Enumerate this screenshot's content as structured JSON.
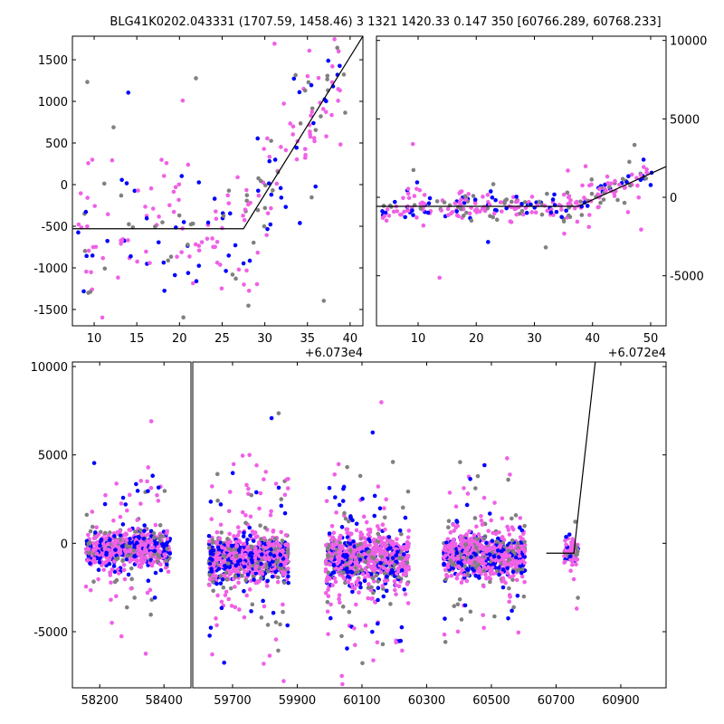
{
  "title": "BLG41K0202.043331 (1707.59, 1458.46)   3 1321 1420.33 0.147 350 [60766.289, 60768.233]",
  "colors": {
    "gray": "#808080",
    "blue": "#0000ff",
    "pink": "#f060e6",
    "model": "#000000"
  },
  "chart_data": [
    {
      "type": "scatter",
      "panel": "top-left",
      "x_offset_label": "+6.073e4",
      "xlim": [
        7.45,
        41.5
      ],
      "ylim": [
        -1696,
        1783
      ],
      "xticks": [
        10,
        15,
        20,
        25,
        30,
        35,
        40
      ],
      "yticks": [
        -1500,
        -1000,
        -500,
        0,
        500,
        1000,
        1500
      ],
      "model_line": {
        "x": [
          7.45,
          27.5,
          41.5
        ],
        "y": [
          -530,
          -530,
          1783
        ]
      },
      "point_noise_sd": 450,
      "n_points": 260
    },
    {
      "type": "scatter",
      "panel": "top-right",
      "x_offset_label": "+6.072e4",
      "xlim": [
        2.84,
        52.65
      ],
      "ylim": [
        -8190,
        10270
      ],
      "xticks": [
        10,
        20,
        30,
        40,
        50
      ],
      "yticks": [
        -5000,
        0,
        5000,
        10000
      ],
      "model_line": {
        "x": [
          2.84,
          37.5,
          52.65
        ],
        "y": [
          -577,
          -577,
          1960
        ]
      },
      "point_noise_sd": 500,
      "n_points": 300
    },
    {
      "type": "scatter",
      "panel": "bottom",
      "broken_x": [
        [
          58115,
          58484
        ],
        [
          59577,
          61040
        ]
      ],
      "ylim": [
        -8175,
        10256
      ],
      "xticks": [
        58200,
        58400,
        59700,
        59900,
        60100,
        60300,
        60500,
        60700,
        60900
      ],
      "yticks": [
        -5000,
        0,
        5000,
        10000
      ],
      "model_line": {
        "x": [
          60670,
          60755,
          60821
        ],
        "y": [
          -560,
          -560,
          10256
        ]
      },
      "clusters": [
        {
          "x": [
            58157,
            58419
          ],
          "mean": -300,
          "sd": 700,
          "n": 700
        },
        {
          "x": [
            59627,
            59873
          ],
          "mean": -800,
          "sd": 900,
          "n": 900
        },
        {
          "x": [
            59988,
            60245
          ],
          "mean": -900,
          "sd": 1000,
          "n": 900
        },
        {
          "x": [
            60352,
            60604
          ],
          "mean": -700,
          "sd": 900,
          "n": 800
        },
        {
          "x": [
            60725,
            60768
          ],
          "mean": -500,
          "sd": 600,
          "n": 80
        }
      ]
    }
  ]
}
